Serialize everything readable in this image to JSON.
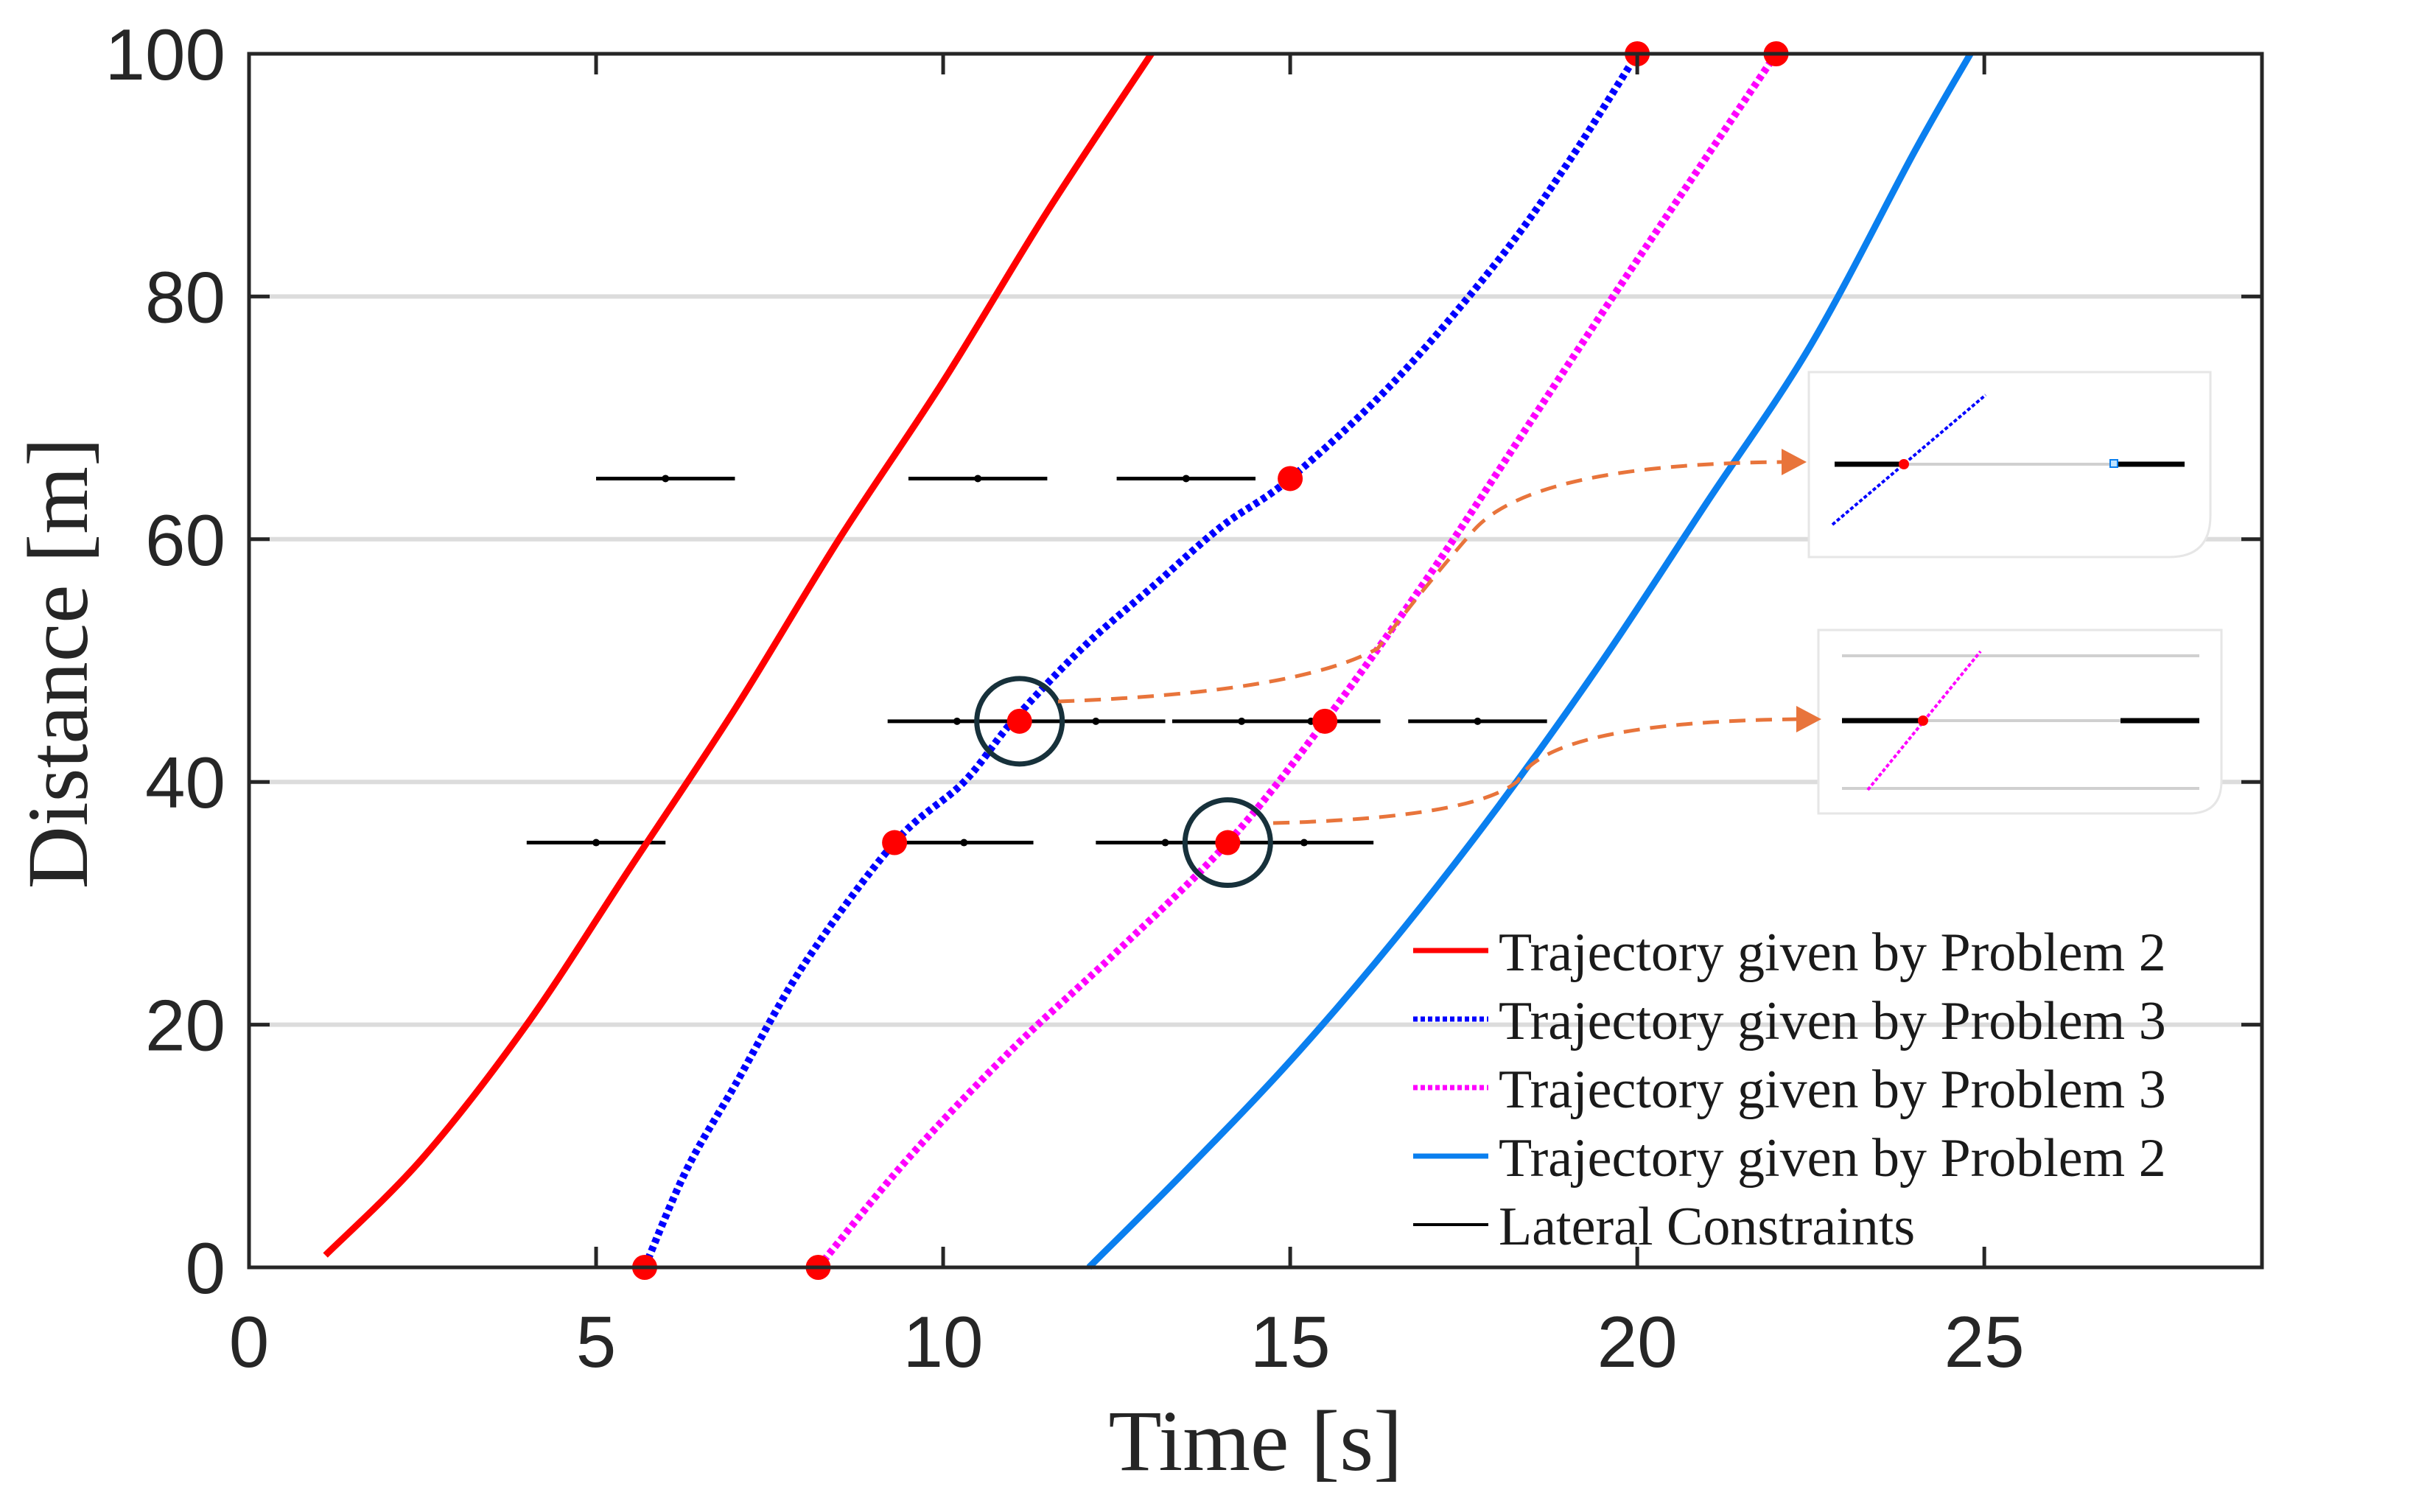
{
  "chart_data": {
    "type": "line",
    "title": "",
    "xlabel": "Time [s]",
    "ylabel": "Distance [m]",
    "xlim": [
      0,
      29
    ],
    "ylim": [
      0,
      100
    ],
    "xticks": [
      0,
      5,
      10,
      15,
      20,
      25
    ],
    "yticks": [
      0,
      20,
      40,
      60,
      80,
      100
    ],
    "xtick_labels": [
      "0",
      "5",
      "10",
      "15",
      "20",
      "25"
    ],
    "ytick_labels": [
      "0",
      "20",
      "40",
      "60",
      "80",
      "100"
    ],
    "grid": "horizontal",
    "legend_position": "bottom-right",
    "series": [
      {
        "name": "Trajectory given by Problem 2",
        "color": "#ff0000",
        "style": "solid",
        "x": [
          1.1,
          2.5,
          4.0,
          5.5,
          7.0,
          8.5,
          10.0,
          11.5,
          13.0
        ],
        "y": [
          1,
          9,
          20,
          33,
          46,
          60,
          73,
          87,
          100
        ],
        "markers": []
      },
      {
        "name": "Trajectory given by Problem 3",
        "color": "#0000ff",
        "style": "dotted",
        "x": [
          5.7,
          6.3,
          7.0,
          8.0,
          9.3,
          10.3,
          11.0,
          12.0,
          13.0,
          14.0,
          15.0,
          16.5,
          18.0,
          19.0,
          20.0
        ],
        "y": [
          0,
          8,
          15,
          25,
          35,
          40,
          45,
          51,
          56,
          61,
          65,
          73,
          83,
          91,
          100
        ],
        "markers": [
          [
            5.7,
            0
          ],
          [
            9.3,
            35
          ],
          [
            11.1,
            45
          ],
          [
            15.0,
            65
          ],
          [
            20.0,
            100
          ]
        ]
      },
      {
        "name": "Trajectory given by Problem 3",
        "color": "#ff00ff",
        "style": "dotted",
        "x": [
          8.2,
          9.5,
          11.0,
          12.5,
          14.1,
          15.5,
          17.0,
          18.5,
          20.0,
          22.0
        ],
        "y": [
          0,
          9,
          18,
          26,
          35,
          45,
          57,
          70,
          83,
          100
        ],
        "markers": [
          [
            8.2,
            0
          ],
          [
            14.1,
            35
          ],
          [
            15.5,
            45
          ],
          [
            22.0,
            100
          ]
        ]
      },
      {
        "name": "Trajectory given by Problem 2",
        "color": "#0a7fef",
        "style": "solid",
        "x": [
          12.1,
          13.5,
          15.0,
          16.5,
          18.0,
          19.5,
          21.0,
          22.5,
          24.0,
          24.8
        ],
        "y": [
          0,
          8,
          17,
          27,
          38,
          50,
          63,
          76,
          92,
          100
        ],
        "markers": []
      }
    ],
    "lateral_constraints": {
      "name": "Lateral Constraints",
      "color": "#000000",
      "segments": [
        {
          "y": 65,
          "x1": 5.0,
          "x2": 7.0,
          "dots": [
            6.0
          ]
        },
        {
          "y": 65,
          "x1": 9.5,
          "x2": 11.5,
          "dots": [
            10.5
          ]
        },
        {
          "y": 65,
          "x1": 12.5,
          "x2": 14.5,
          "dots": [
            13.5
          ]
        },
        {
          "y": 45,
          "x1": 9.2,
          "x2": 13.2,
          "dots": [
            10.2,
            12.2
          ]
        },
        {
          "y": 45,
          "x1": 13.3,
          "x2": 16.3,
          "dots": [
            14.3,
            15.3
          ]
        },
        {
          "y": 45,
          "x1": 16.7,
          "x2": 18.7,
          "dots": [
            17.7
          ]
        },
        {
          "y": 35,
          "x1": 4.0,
          "x2": 6.0,
          "dots": [
            5.0
          ]
        },
        {
          "y": 35,
          "x1": 9.3,
          "x2": 11.3,
          "dots": [
            10.3
          ]
        },
        {
          "y": 35,
          "x1": 12.2,
          "x2": 16.2,
          "dots": [
            13.2,
            15.2
          ]
        }
      ]
    },
    "highlight_circles": [
      [
        11.1,
        45
      ],
      [
        14.1,
        35
      ]
    ],
    "legend": [
      {
        "label": "Trajectory given by Problem 2",
        "color": "#ff0000",
        "style": "solid"
      },
      {
        "label": "Trajectory given by Problem 3",
        "color": "#0000ff",
        "style": "dotted"
      },
      {
        "label": "Trajectory given by Problem 3",
        "color": "#ff00ff",
        "style": "dotted"
      },
      {
        "label": "Trajectory given by Problem 2",
        "color": "#0a7fef",
        "style": "solid"
      },
      {
        "label": "Lateral Constraints",
        "color": "#000000",
        "style": "solid-thin"
      }
    ]
  },
  "colors": {
    "marker": "#ff0000",
    "grid": "#dcdcdc",
    "axis": "#262626",
    "arrow": "#e8743b",
    "circle": "#17313b"
  }
}
